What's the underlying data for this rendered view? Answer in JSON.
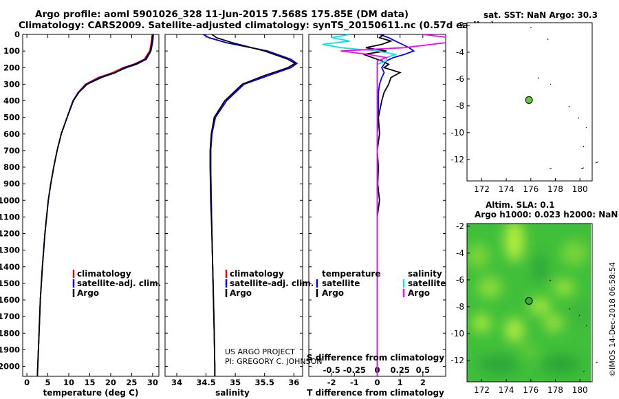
{
  "header": {
    "line1": "Argo profile: aoml 5901026_328 11-Jun-2015 7.568S 175.85E (DM data)",
    "line2": "Climatology: CARS2009. Satellite-adjusted climatology: synTS_20150611.nc (0.57d earlier)"
  },
  "depth_axis": {
    "ticks": [
      0,
      100,
      200,
      300,
      400,
      500,
      600,
      700,
      800,
      900,
      1000,
      1100,
      1200,
      1300,
      1400,
      1500,
      1600,
      1700,
      1800,
      1900,
      2000
    ],
    "range": [
      0,
      2060
    ]
  },
  "colors": {
    "climatology": "#ff0000",
    "satellite": "#0000ff",
    "argo": "#000000",
    "cyan": "#00e5ee",
    "magenta": "#ff00ff",
    "map_point": "#66cc33"
  },
  "panels": {
    "temperature": {
      "xlabel": "temperature (deg C)",
      "legend": [
        "climatology",
        "satellite-adj. clim.",
        "Argo"
      ]
    },
    "salinity": {
      "xlabel": "salinity",
      "legend": [
        "climatology",
        "satellite-adj. clim.",
        "Argo"
      ],
      "credit1": "US ARGO PROJECT",
      "credit2": "PI: GREGORY C. JOHNSON"
    },
    "difference": {
      "xlabel": "T difference from climatology",
      "top_label": "S difference from climatology",
      "legend_left_title": "temperature",
      "legend_left": [
        "satellite",
        "Argo"
      ],
      "legend_right_title": "salinity",
      "legend_right": [
        "satellite",
        "Argo"
      ]
    }
  },
  "maps": {
    "sst": {
      "title": "sat. SST: NaN Argo: 30.3",
      "xticks": [
        "172",
        "174",
        "176",
        "178",
        "180"
      ],
      "yticks": [
        "-2",
        "-4",
        "-6",
        "-8",
        "-10",
        "-12"
      ],
      "point_lon": 175.85,
      "point_lat": -7.568
    },
    "sla": {
      "title1": "Altim. SLA: 0.1",
      "title2": "Argo h1000: 0.023 h2000: NaN",
      "xticks": [
        "172",
        "174",
        "176",
        "178",
        "180"
      ],
      "yticks": [
        "-2",
        "-4",
        "-6",
        "-8",
        "-10",
        "-12"
      ],
      "point_lon": 175.85,
      "point_lat": -7.568
    },
    "lon_range": [
      170.8,
      181.0
    ],
    "lat_range": [
      -13.6,
      -1.8
    ]
  },
  "imos_stamp": "©IMOS 14-Dec-2018 06:58:54",
  "chart_data": [
    {
      "type": "line",
      "title": "temperature profile",
      "xlabel": "temperature (deg C)",
      "ylabel": "depth",
      "xlim": [
        -1,
        31.5
      ],
      "ylim": [
        2060,
        0
      ],
      "xticks": [
        0,
        5,
        10,
        15,
        20,
        25,
        30
      ],
      "depth": [
        0,
        50,
        100,
        150,
        180,
        200,
        230,
        260,
        300,
        350,
        400,
        500,
        600,
        700,
        800,
        900,
        1000,
        1200,
        1400,
        1600,
        1800,
        2000,
        2060
      ],
      "series": [
        {
          "name": "climatology",
          "values": [
            29.9,
            29.7,
            29.3,
            28.0,
            25.5,
            23.0,
            20.5,
            17.0,
            14.0,
            12.2,
            11.0,
            9.6,
            8.2,
            7.2,
            6.4,
            5.7,
            5.1,
            4.3,
            3.7,
            3.2,
            2.9,
            2.6,
            2.5
          ]
        },
        {
          "name": "satellite-adj. clim.",
          "values": [
            30.2,
            30.0,
            29.6,
            28.5,
            26.2,
            23.8,
            21.0,
            17.4,
            14.2,
            12.3,
            11.0,
            9.6,
            8.2,
            7.2,
            6.4,
            5.7,
            5.1,
            4.3,
            3.7,
            3.2,
            2.9,
            2.6,
            2.5
          ]
        },
        {
          "name": "Argo",
          "values": [
            30.0,
            29.8,
            29.5,
            28.3,
            25.8,
            23.2,
            21.2,
            17.8,
            14.4,
            12.4,
            11.1,
            9.6,
            8.2,
            7.2,
            6.4,
            5.7,
            5.1,
            4.3,
            3.7,
            3.2,
            2.9,
            2.6,
            2.5
          ]
        }
      ]
    },
    {
      "type": "line",
      "title": "salinity profile",
      "xlabel": "salinity",
      "ylabel": "depth",
      "xlim": [
        33.8,
        36.15
      ],
      "ylim": [
        2060,
        0
      ],
      "xticks": [
        34,
        34.5,
        35,
        35.5,
        36
      ],
      "depth": [
        0,
        20,
        50,
        100,
        150,
        175,
        200,
        250,
        300,
        400,
        500,
        600,
        700,
        800,
        1000,
        1200,
        1500,
        1800,
        2000,
        2060
      ],
      "series": [
        {
          "name": "climatology",
          "values": [
            34.45,
            34.55,
            34.85,
            35.55,
            35.95,
            36.05,
            35.95,
            35.55,
            35.15,
            34.85,
            34.66,
            34.6,
            34.58,
            34.58,
            34.59,
            34.6,
            34.62,
            34.64,
            34.65,
            34.65
          ]
        },
        {
          "name": "satellite-adj. clim.",
          "values": [
            34.45,
            34.55,
            34.85,
            35.55,
            35.95,
            36.05,
            35.95,
            35.55,
            35.15,
            34.85,
            34.66,
            34.6,
            34.58,
            34.58,
            34.59,
            34.6,
            34.62,
            34.64,
            34.65,
            34.65
          ]
        },
        {
          "name": "Argo",
          "values": [
            34.6,
            34.68,
            34.95,
            35.5,
            35.9,
            36.02,
            35.9,
            35.48,
            35.12,
            34.82,
            34.64,
            34.59,
            34.57,
            34.57,
            34.58,
            34.6,
            34.62,
            34.64,
            34.65,
            34.65
          ]
        }
      ]
    },
    {
      "type": "line",
      "title": "difference from climatology",
      "xlabel": "T difference from climatology",
      "x2label": "S difference from climatology",
      "xlim": [
        -3,
        3
      ],
      "ylim": [
        2060,
        0
      ],
      "xticks": [
        -2,
        -1,
        0,
        1,
        2
      ],
      "x2ticks": [
        "-0.5",
        "-0.25",
        "0",
        "0.25",
        "0.5"
      ],
      "depth": [
        0,
        20,
        40,
        60,
        80,
        100,
        120,
        140,
        160,
        180,
        200,
        230,
        260,
        300,
        350,
        400,
        500,
        600,
        700,
        800,
        900,
        1000,
        1100,
        1200,
        1500,
        2000,
        2060
      ],
      "series": [
        {
          "name": "temperature satellite",
          "values": [
            0.1,
            0.5,
            0.8,
            1.1,
            1.4,
            1.6,
            1.2,
            0.7,
            0.4,
            0.3,
            0.2,
            0.3,
            0.2,
            0.1,
            0.05,
            0.05,
            0.05,
            0.0,
            0.0,
            0.0,
            0.0,
            0.0,
            0.0,
            0.0,
            0.0,
            0.0,
            0.0
          ]
        },
        {
          "name": "temperature Argo",
          "values": [
            0.3,
            0.1,
            0.6,
            0.2,
            -0.5,
            0.4,
            -0.6,
            -0.2,
            0.2,
            0.5,
            0.3,
            1.0,
            0.6,
            0.5,
            0.3,
            0.2,
            0.05,
            0.1,
            0.0,
            0.05,
            0.02,
            0.1,
            0.0,
            0.0,
            0.0,
            0.0,
            0.0
          ]
        },
        {
          "name": "salinity satellite",
          "values": [
            -0.3,
            -0.5,
            -0.3,
            -0.6,
            -0.4,
            0.0,
            0.2,
            0.1,
            0.1,
            0.0,
            0.0,
            0.0,
            0.0,
            0.0,
            0.0,
            0.0,
            0.0,
            0.0,
            0.0,
            0.0,
            0.0,
            0.0,
            0.0,
            0.0,
            0.0,
            0.0,
            0.0
          ]
        },
        {
          "name": "salinity Argo",
          "values": [
            0.5,
            0.8,
            0.9,
            0.6,
            0.3,
            -0.4,
            -0.1,
            0.1,
            0.0,
            0.0,
            0.0,
            0.0,
            0.0,
            0.0,
            0.0,
            0.0,
            0.0,
            0.0,
            0.0,
            0.0,
            0.0,
            0.0,
            0.0,
            0.0,
            0.0,
            0.0,
            0.0
          ]
        }
      ]
    }
  ]
}
